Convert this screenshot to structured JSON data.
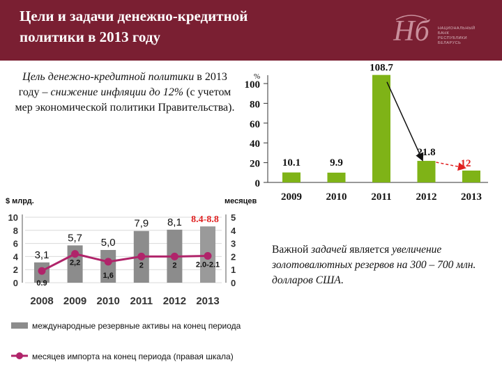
{
  "header": {
    "title_line1": "Цели и задачи денежно-кредитной",
    "title_line2": "политики в 2013 году",
    "logo_text": [
      "НАЦИОНАЛЬНЫЙ",
      "БАНК",
      "РЕСПУБЛИКИ",
      "БЕЛАРУСЬ"
    ]
  },
  "goal_text": {
    "p1_italic": "Цель денежно-кредитной политики",
    "p2": " в 2013 году – ",
    "p3_italic": "снижение инфляции до 12%",
    "p4": " (с учетом мер экономической политики Правительства)."
  },
  "reserve_note": {
    "p1": "Важной ",
    "p2_italic": "задачей",
    "p3": " является ",
    "p4_italic": "увеличение золотовалютных резервов на 300 – 700 млн. долларов США",
    "p5": "."
  },
  "colors": {
    "header_bg": "#7a1f32",
    "inflation_bar": "#7fb317",
    "reserve_bar": "#8c8c8c",
    "months_line": "#b0246a",
    "arrow_red": "#e02020",
    "highlight_red": "#e02020"
  },
  "chart_data": [
    {
      "type": "bar",
      "categories": [
        "2009",
        "2010",
        "2011",
        "2012",
        "2013"
      ],
      "values": [
        10.1,
        9.9,
        108.7,
        21.8,
        12
      ],
      "value_labels": [
        "10.1",
        "9.9",
        "108.7",
        "21.8",
        "12"
      ],
      "unit_label": "%",
      "yticks": [
        "0",
        "20",
        "40",
        "60",
        "80",
        "100"
      ],
      "ylim": [
        0,
        115
      ],
      "highlight_category": "2013",
      "annotations": [
        "arrow from 2011 to 2012",
        "dashed arrow from 2012 to 2013"
      ]
    },
    {
      "type": "bar",
      "categories": [
        "2008",
        "2009",
        "2010",
        "2011",
        "2012",
        "2013"
      ],
      "series": [
        {
          "name": "международные резервные активы на конец периода",
          "values": [
            3.1,
            5.7,
            5.0,
            7.9,
            8.1,
            8.6
          ],
          "value_labels": [
            "3,1",
            "5,7",
            "5,0",
            "7,9",
            "8,1",
            "8.4-8.8"
          ],
          "axis": "left"
        },
        {
          "name": "месяцев импорта на конец периода (правая шкала)",
          "values": [
            0.9,
            2.2,
            1.6,
            2.0,
            2.0,
            2.05
          ],
          "value_labels": [
            "0.9",
            "2,2",
            "1,6",
            "2",
            "2",
            "2.0-2.1"
          ],
          "axis": "right"
        }
      ],
      "left_axis_label": "$ млрд.",
      "right_axis_label": "месяцев",
      "left_yticks": [
        "0",
        "2",
        "4",
        "6",
        "8",
        "10"
      ],
      "right_yticks": [
        "0",
        "1",
        "2",
        "3",
        "4",
        "5"
      ],
      "ylim_left": [
        0,
        10
      ],
      "ylim_right": [
        0,
        5
      ]
    }
  ]
}
